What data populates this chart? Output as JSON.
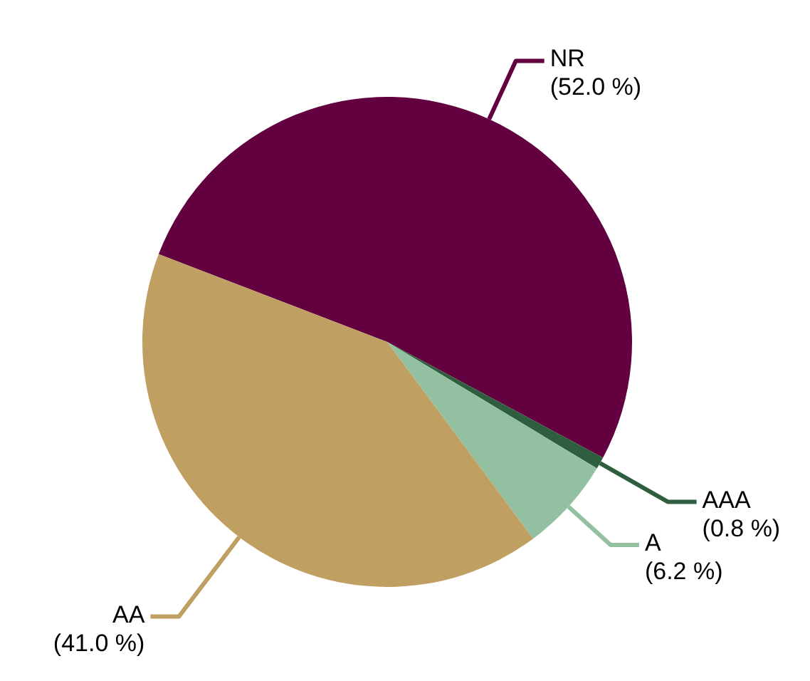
{
  "chart_data": {
    "type": "pie",
    "categories": [
      "NR",
      "AAA",
      "A",
      "AA"
    ],
    "values": [
      52.0,
      0.8,
      6.2,
      41.0
    ],
    "value_labels": [
      "(52.0 %)",
      "(0.8 %)",
      "(6.2 %)",
      "(41.0 %)"
    ],
    "colors": [
      "#620040",
      "#2e5e3e",
      "#93c0a0",
      "#c0a062"
    ]
  }
}
